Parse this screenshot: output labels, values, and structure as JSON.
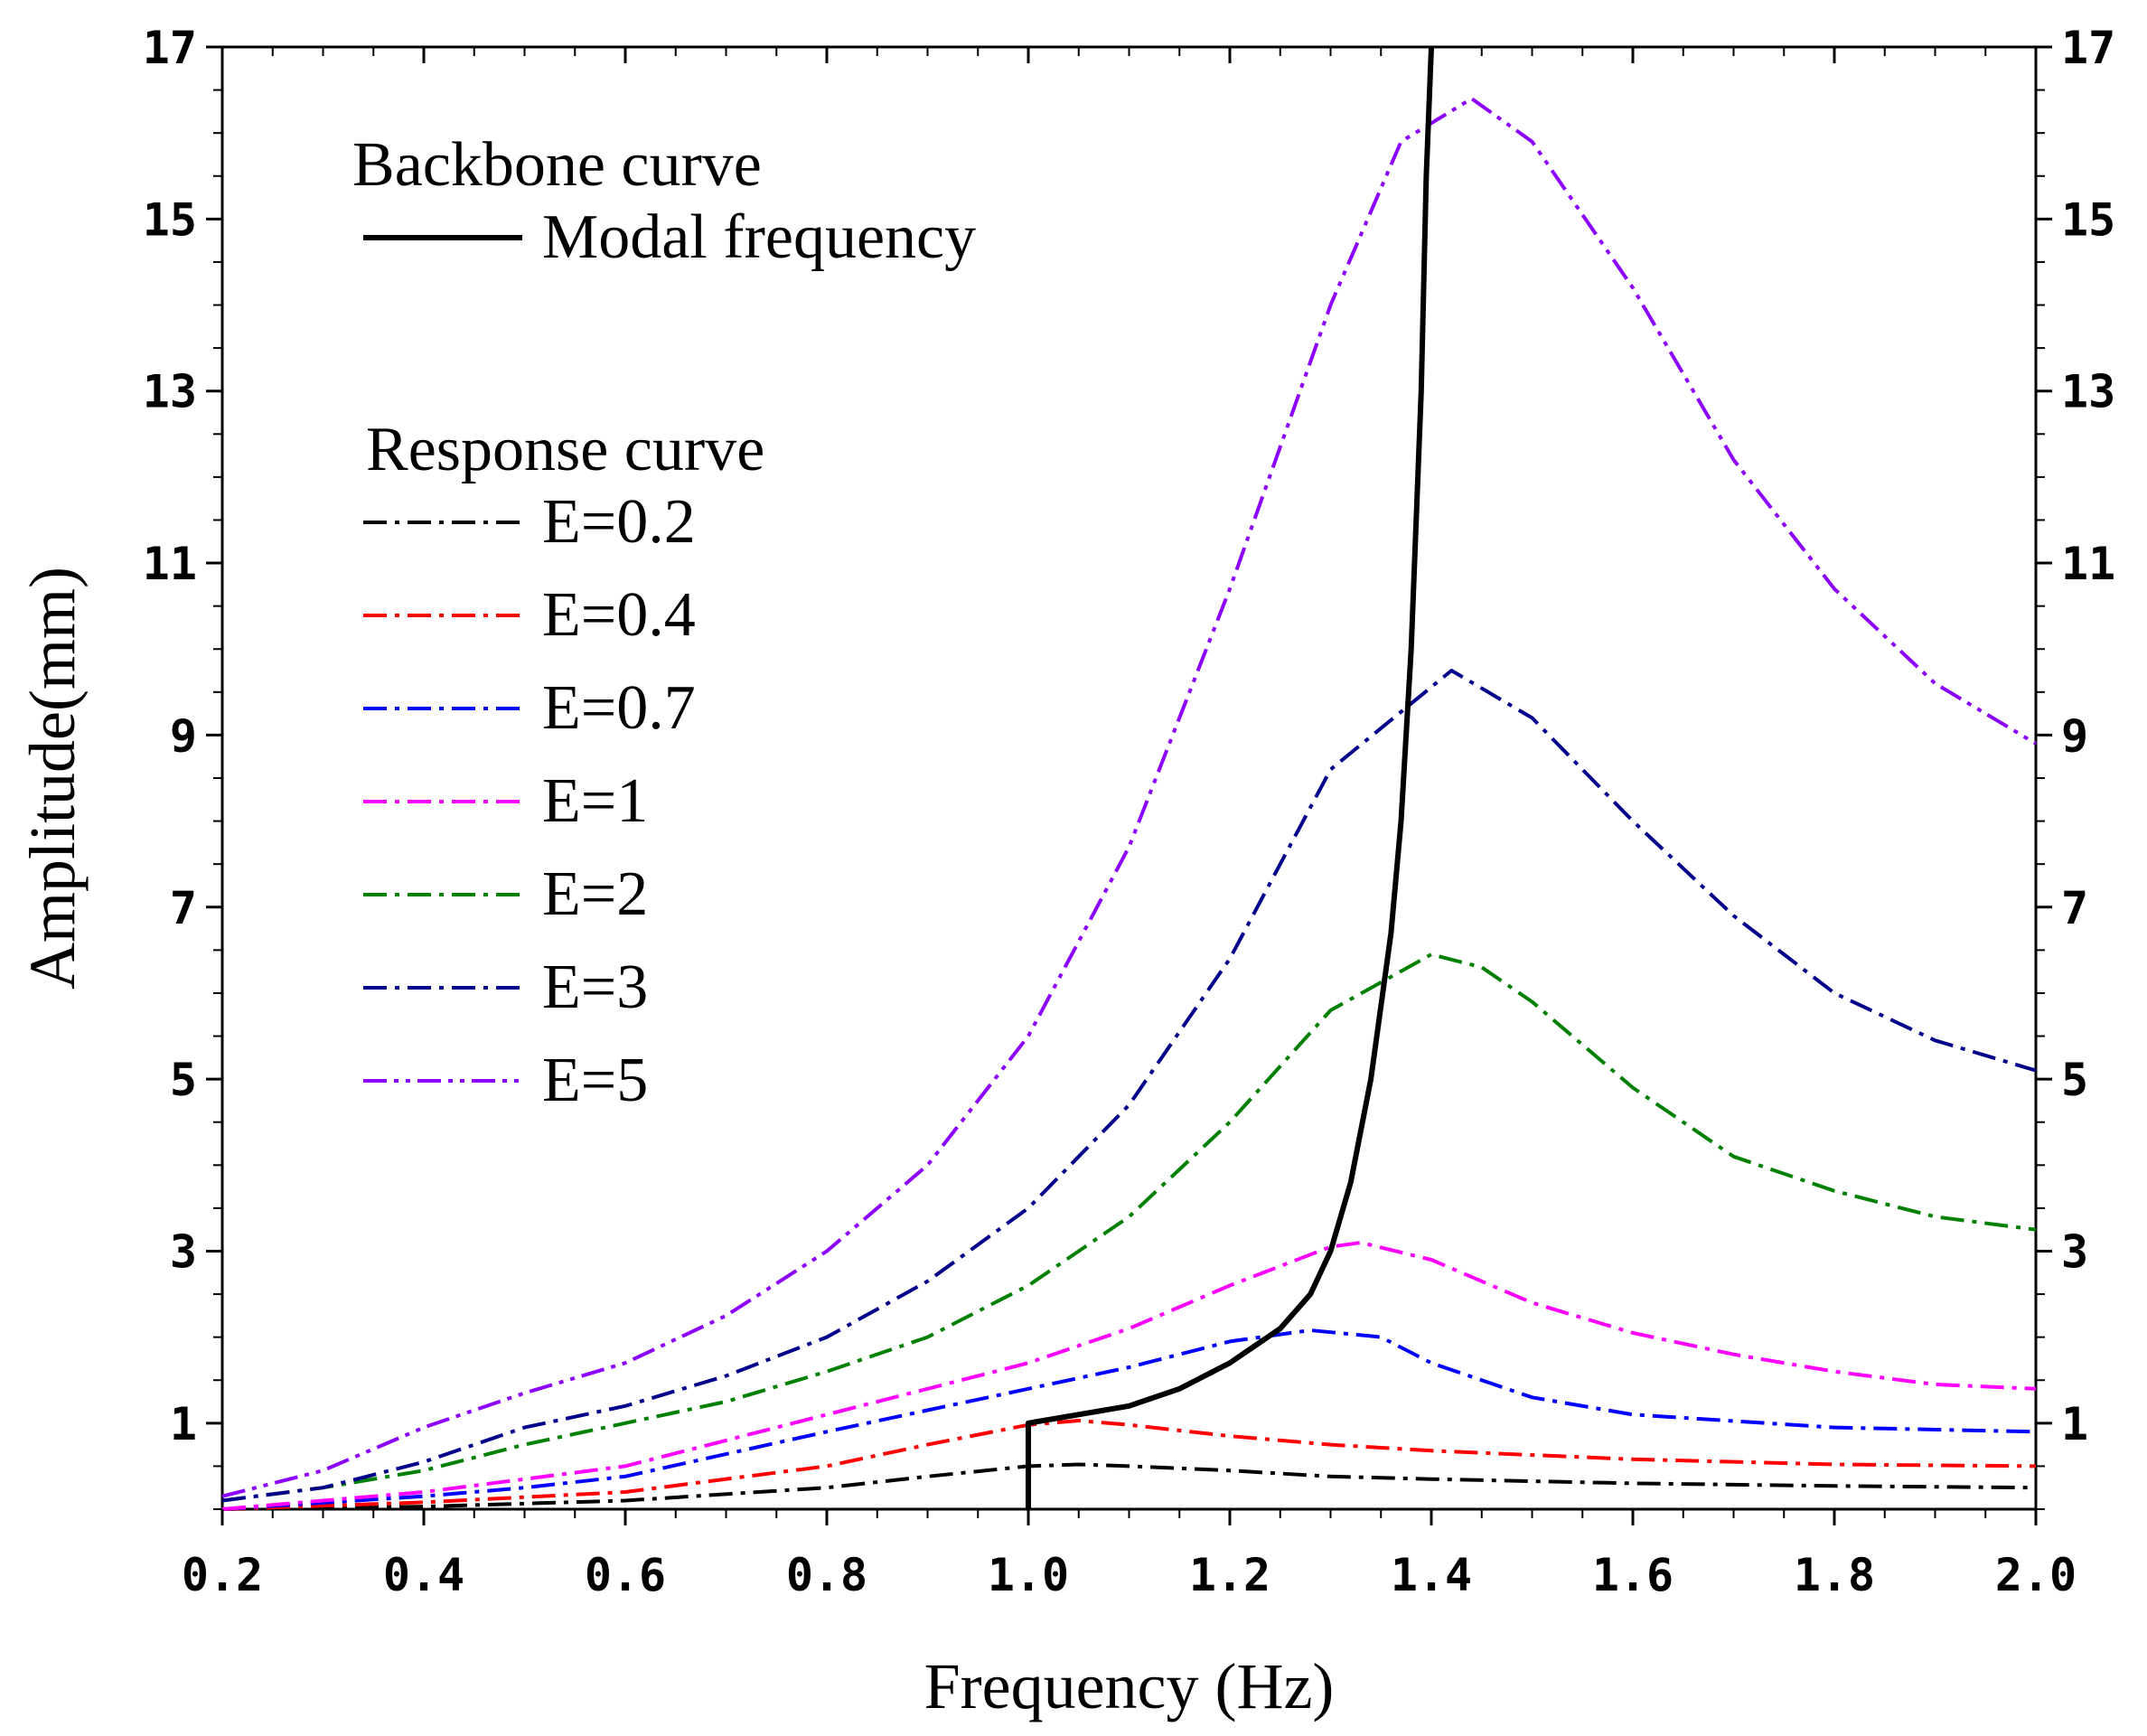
{
  "chart_data": {
    "type": "line",
    "title": "",
    "xlabel": "Frequency (Hz)",
    "ylabel": "Amplitude(mm)",
    "xlim": [
      0.2,
      2.0
    ],
    "ylim": [
      0,
      17
    ],
    "xticks": [
      0.2,
      0.4,
      0.6,
      0.8,
      1.0,
      1.2,
      1.4,
      1.6,
      1.8,
      2.0
    ],
    "xtick_labels": [
      "0.2",
      "0.4",
      "0.6",
      "0.8",
      "1.0",
      "1.2",
      "1.4",
      "1.6",
      "1.8",
      "2.0"
    ],
    "yticks": [
      1,
      3,
      5,
      7,
      9,
      11,
      13,
      15,
      17
    ],
    "ytick_labels": [
      "1",
      "3",
      "5",
      "7",
      "9",
      "11",
      "13",
      "15",
      "17"
    ],
    "grid": false,
    "legend": {
      "placement": "top-left",
      "backbone_heading": "Backbone curve",
      "response_heading": "Response curve"
    },
    "series": [
      {
        "name": "Modal frequency",
        "group": "backbone",
        "style": "solid",
        "color": "#000000",
        "points": [
          [
            1.0,
            0
          ],
          [
            1.0,
            1.0
          ],
          [
            1.1,
            1.2
          ],
          [
            1.15,
            1.4
          ],
          [
            1.2,
            1.7
          ],
          [
            1.25,
            2.1
          ],
          [
            1.28,
            2.5
          ],
          [
            1.3,
            3.0
          ],
          [
            1.32,
            3.8
          ],
          [
            1.34,
            5.0
          ],
          [
            1.36,
            6.7
          ],
          [
            1.37,
            8.0
          ],
          [
            1.38,
            10.0
          ],
          [
            1.39,
            13.0
          ],
          [
            1.395,
            15.5
          ],
          [
            1.4,
            17.0
          ]
        ]
      },
      {
        "name": "E=0.2",
        "group": "response",
        "style": "dashdot",
        "color": "#000000",
        "points": [
          [
            0.2,
            0.0
          ],
          [
            0.4,
            0.03
          ],
          [
            0.6,
            0.1
          ],
          [
            0.8,
            0.25
          ],
          [
            0.9,
            0.38
          ],
          [
            1.0,
            0.5
          ],
          [
            1.05,
            0.52
          ],
          [
            1.1,
            0.5
          ],
          [
            1.2,
            0.45
          ],
          [
            1.3,
            0.38
          ],
          [
            1.4,
            0.35
          ],
          [
            1.6,
            0.3
          ],
          [
            1.8,
            0.27
          ],
          [
            2.0,
            0.25
          ]
        ]
      },
      {
        "name": "E=0.4",
        "group": "response",
        "style": "dashdot",
        "color": "#ff0000",
        "points": [
          [
            0.2,
            0.0
          ],
          [
            0.4,
            0.08
          ],
          [
            0.6,
            0.2
          ],
          [
            0.8,
            0.5
          ],
          [
            0.9,
            0.75
          ],
          [
            1.0,
            0.98
          ],
          [
            1.05,
            1.03
          ],
          [
            1.1,
            0.98
          ],
          [
            1.2,
            0.85
          ],
          [
            1.3,
            0.75
          ],
          [
            1.4,
            0.68
          ],
          [
            1.6,
            0.58
          ],
          [
            1.8,
            0.52
          ],
          [
            2.0,
            0.5
          ]
        ]
      },
      {
        "name": "E=0.7",
        "group": "response",
        "style": "dashdot",
        "color": "#0000ff",
        "points": [
          [
            0.2,
            0.0
          ],
          [
            0.4,
            0.15
          ],
          [
            0.5,
            0.25
          ],
          [
            0.6,
            0.38
          ],
          [
            0.8,
            0.9
          ],
          [
            0.9,
            1.15
          ],
          [
            1.0,
            1.4
          ],
          [
            1.1,
            1.65
          ],
          [
            1.2,
            1.95
          ],
          [
            1.28,
            2.08
          ],
          [
            1.35,
            2.0
          ],
          [
            1.4,
            1.7
          ],
          [
            1.5,
            1.3
          ],
          [
            1.6,
            1.1
          ],
          [
            1.8,
            0.95
          ],
          [
            2.0,
            0.9
          ]
        ]
      },
      {
        "name": "E=1",
        "group": "response",
        "style": "dashdot",
        "color": "#ff00ff",
        "points": [
          [
            0.2,
            0.0
          ],
          [
            0.4,
            0.2
          ],
          [
            0.6,
            0.5
          ],
          [
            0.7,
            0.8
          ],
          [
            0.8,
            1.1
          ],
          [
            0.9,
            1.4
          ],
          [
            1.0,
            1.7
          ],
          [
            1.1,
            2.1
          ],
          [
            1.2,
            2.6
          ],
          [
            1.3,
            3.05
          ],
          [
            1.33,
            3.1
          ],
          [
            1.4,
            2.9
          ],
          [
            1.5,
            2.4
          ],
          [
            1.6,
            2.05
          ],
          [
            1.7,
            1.8
          ],
          [
            1.8,
            1.6
          ],
          [
            1.9,
            1.45
          ],
          [
            2.0,
            1.4
          ]
        ]
      },
      {
        "name": "E=2",
        "group": "response",
        "style": "dashdot",
        "color": "#008000",
        "points": [
          [
            0.2,
            0.1
          ],
          [
            0.3,
            0.25
          ],
          [
            0.4,
            0.45
          ],
          [
            0.5,
            0.75
          ],
          [
            0.6,
            1.0
          ],
          [
            0.7,
            1.25
          ],
          [
            0.8,
            1.6
          ],
          [
            0.9,
            2.0
          ],
          [
            1.0,
            2.6
          ],
          [
            1.1,
            3.4
          ],
          [
            1.2,
            4.5
          ],
          [
            1.3,
            5.8
          ],
          [
            1.4,
            6.45
          ],
          [
            1.45,
            6.3
          ],
          [
            1.5,
            5.9
          ],
          [
            1.6,
            4.9
          ],
          [
            1.7,
            4.1
          ],
          [
            1.8,
            3.7
          ],
          [
            1.9,
            3.4
          ],
          [
            2.0,
            3.25
          ]
        ]
      },
      {
        "name": "E=3",
        "group": "response",
        "style": "dashdot",
        "color": "#00008b",
        "points": [
          [
            0.2,
            0.1
          ],
          [
            0.3,
            0.25
          ],
          [
            0.4,
            0.55
          ],
          [
            0.5,
            0.95
          ],
          [
            0.6,
            1.2
          ],
          [
            0.7,
            1.55
          ],
          [
            0.8,
            2.0
          ],
          [
            0.9,
            2.65
          ],
          [
            1.0,
            3.5
          ],
          [
            1.1,
            4.7
          ],
          [
            1.2,
            6.4
          ],
          [
            1.3,
            8.6
          ],
          [
            1.42,
            9.75
          ],
          [
            1.5,
            9.2
          ],
          [
            1.6,
            8.0
          ],
          [
            1.7,
            6.9
          ],
          [
            1.8,
            6.0
          ],
          [
            1.9,
            5.45
          ],
          [
            2.0,
            5.1
          ]
        ]
      },
      {
        "name": "E=5",
        "group": "response",
        "style": "dashdotdot",
        "color": "#8b00ff",
        "points": [
          [
            0.2,
            0.15
          ],
          [
            0.3,
            0.45
          ],
          [
            0.35,
            0.7
          ],
          [
            0.4,
            0.95
          ],
          [
            0.45,
            1.15
          ],
          [
            0.5,
            1.35
          ],
          [
            0.6,
            1.7
          ],
          [
            0.7,
            2.25
          ],
          [
            0.8,
            3.0
          ],
          [
            0.9,
            4.0
          ],
          [
            1.0,
            5.5
          ],
          [
            1.1,
            7.7
          ],
          [
            1.2,
            10.7
          ],
          [
            1.3,
            14.0
          ],
          [
            1.37,
            15.9
          ],
          [
            1.44,
            16.4
          ],
          [
            1.5,
            15.9
          ],
          [
            1.6,
            14.2
          ],
          [
            1.7,
            12.2
          ],
          [
            1.8,
            10.7
          ],
          [
            1.9,
            9.6
          ],
          [
            2.0,
            8.9
          ]
        ]
      }
    ]
  }
}
